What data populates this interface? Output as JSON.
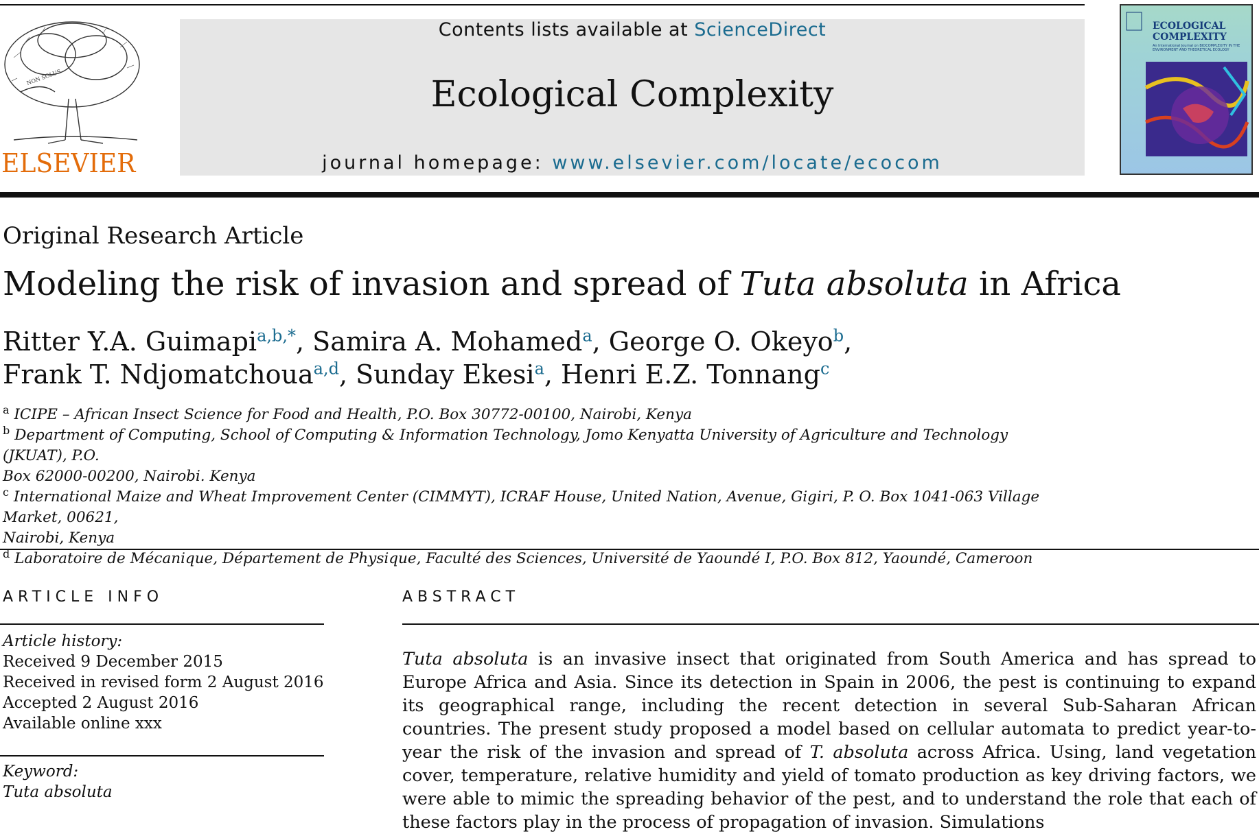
{
  "header": {
    "contents_prefix": "Contents lists available at ",
    "contents_link": "ScienceDirect",
    "journal_title": "Ecological Complexity",
    "homepage_prefix": "journal homepage: ",
    "homepage_link": "www.elsevier.com/locate/ecocom",
    "publisher_logo_text": "ELSEVIER",
    "cover_title_line1": "ECOLOGICAL",
    "cover_title_line2": "COMPLEXITY",
    "cover_subtitle": "An International Journal on BIOCOMPLEXITY IN THE ENVIRONMENT AND THEORETICAL ECOLOGY"
  },
  "article": {
    "type": "Original Research Article",
    "title_pre": "Modeling the risk of invasion and spread of ",
    "title_italic": "Tuta absoluta",
    "title_post": " in Africa",
    "authors": [
      {
        "name": "Ritter Y.A. Guimapi",
        "sup": "a,b,*",
        "sep": ", "
      },
      {
        "name": "Samira A. Mohamed",
        "sup": "a",
        "sep": ", "
      },
      {
        "name": "George O. Okeyo",
        "sup": "b",
        "sep": ","
      },
      {
        "name": "Frank T. Ndjomatchoua",
        "sup": "a,d",
        "sep": ", "
      },
      {
        "name": "Sunday Ekesi",
        "sup": "a",
        "sep": ", "
      },
      {
        "name": "Henri E.Z. Tonnang",
        "sup": "c",
        "sep": ""
      }
    ],
    "affiliations": [
      {
        "key": "a",
        "text": "ICIPE – African Insect Science for Food and Health, P.O. Box 30772-00100, Nairobi, Kenya"
      },
      {
        "key": "b",
        "text": "Department of Computing, School of Computing & Information Technology, Jomo Kenyatta University of Agriculture and Technology (JKUAT), P.O.",
        "cont": "Box 62000-00200, Nairobi. Kenya"
      },
      {
        "key": "c",
        "text": "International Maize and Wheat Improvement Center (CIMMYT), ICRAF House, United Nation, Avenue, Gigiri, P. O. Box 1041-063 Village Market, 00621,",
        "cont": "Nairobi, Kenya"
      },
      {
        "key": "d",
        "text": "Laboratoire de Mécanique, Département de Physique, Faculté des Sciences, Université de Yaoundé I, P.O. Box 812, Yaoundé, Cameroon"
      }
    ]
  },
  "article_info": {
    "heading": "ARTICLE INFO",
    "history_label": "Article history:",
    "history": [
      "Received 9 December 2015",
      "Received in revised form 2 August 2016",
      "Accepted 2 August 2016",
      "Available online xxx"
    ],
    "keyword_label": "Keyword:",
    "keyword": "Tuta absoluta"
  },
  "abstract": {
    "heading": "ABSTRACT",
    "line1_italic": "Tuta absoluta",
    "line1_rest": " is an invasive insect that originated from South America and has spread to Europe Africa and Asia. Since its detection in Spain in 2006, the pest is continuing to expand its geographical range, including the recent detection in several Sub-Saharan African countries. The present study proposed a model based on cellular automata to predict year-to-year the risk of the invasion and spread of ",
    "italic2": "T. absoluta",
    "rest2": " across Africa. Using, land vegetation cover, temperature, relative humidity and yield of tomato production as key driving factors, we were able to mimic the spreading behavior of the pest, and to understand the role that each of these factors play in the process of propagation of invasion. Simulations"
  }
}
